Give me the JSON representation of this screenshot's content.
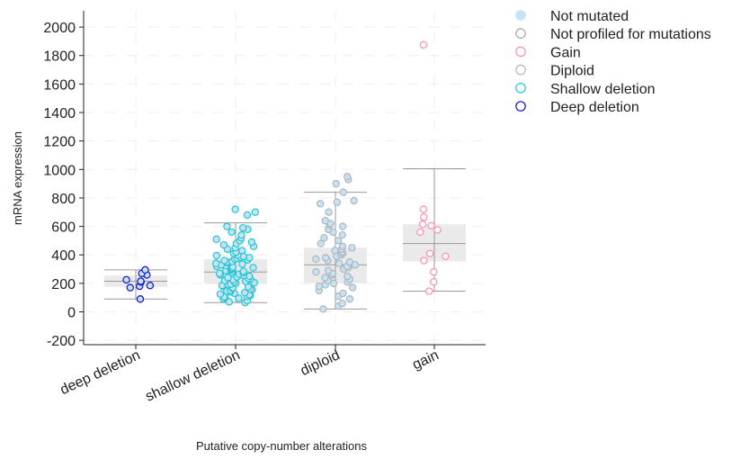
{
  "chart_data": {
    "type": "box-scatter",
    "xlabel": "Putative copy-number alterations",
    "ylabel": "mRNA expression",
    "ylim": [
      -200,
      2100
    ],
    "yticks": [
      -200,
      0,
      200,
      400,
      600,
      800,
      1000,
      1200,
      1400,
      1600,
      1800,
      2000
    ],
    "grid": true,
    "legend": {
      "placement": "top-right",
      "entries": [
        {
          "label": "Not mutated",
          "color": "#c6e2f5",
          "style": "filled"
        },
        {
          "label": "Not profiled for mutations",
          "color": "#a6a6a6",
          "style": "open"
        },
        {
          "label": "Gain",
          "color": "#ff8fa6",
          "style": "open"
        },
        {
          "label": "Diploid",
          "color": "#b0b7bd",
          "style": "open"
        },
        {
          "label": "Shallow deletion",
          "color": "#23c7d0",
          "style": "open"
        },
        {
          "label": "Deep deletion",
          "color": "#1010c8",
          "style": "open"
        }
      ]
    },
    "categories": [
      {
        "name": "deep deletion",
        "stroke": "#1010c8",
        "fill": "#c6e2f5",
        "box": {
          "whisker_low": 90,
          "q1": 175,
          "median": 215,
          "q3": 255,
          "whisker_high": 295
        },
        "points": [
          90,
          170,
          180,
          185,
          210,
          215,
          225,
          260,
          270,
          295
        ]
      },
      {
        "name": "shallow deletion",
        "stroke": "#23c7d0",
        "fill": "#c6e2f5",
        "box": {
          "whisker_low": 65,
          "q1": 195,
          "median": 280,
          "q3": 370,
          "whisker_high": 625
        },
        "points": [
          65,
          70,
          80,
          90,
          95,
          100,
          105,
          110,
          115,
          120,
          125,
          130,
          135,
          140,
          145,
          150,
          155,
          160,
          165,
          170,
          175,
          180,
          185,
          190,
          195,
          200,
          205,
          210,
          215,
          220,
          225,
          230,
          235,
          240,
          245,
          250,
          255,
          260,
          265,
          270,
          275,
          280,
          285,
          290,
          295,
          300,
          305,
          310,
          315,
          320,
          325,
          330,
          335,
          340,
          345,
          350,
          355,
          360,
          365,
          370,
          375,
          380,
          385,
          390,
          395,
          400,
          410,
          420,
          430,
          440,
          450,
          460,
          470,
          480,
          490,
          500,
          510,
          520,
          540,
          560,
          580,
          590,
          600,
          680,
          700,
          720
        ]
      },
      {
        "name": "diploid",
        "stroke": "#b0b7bd",
        "fill": "#c6e2f5",
        "box": {
          "whisker_low": 20,
          "q1": 200,
          "median": 330,
          "q3": 450,
          "whisker_high": 840
        },
        "points": [
          20,
          40,
          60,
          90,
          110,
          130,
          150,
          170,
          180,
          190,
          200,
          210,
          220,
          230,
          240,
          250,
          260,
          270,
          280,
          290,
          300,
          310,
          320,
          330,
          340,
          350,
          360,
          370,
          380,
          390,
          400,
          410,
          420,
          430,
          440,
          450,
          460,
          480,
          500,
          520,
          540,
          560,
          580,
          600,
          610,
          620,
          640,
          700,
          760,
          770,
          780,
          840,
          900,
          930,
          950
        ]
      },
      {
        "name": "gain",
        "stroke": "#ff8fa6",
        "fill": "#ffffff",
        "box": {
          "whisker_low": 145,
          "q1": 355,
          "median": 480,
          "q3": 615,
          "whisker_high": 1005
        },
        "points": [
          145,
          210,
          280,
          360,
          390,
          410,
          560,
          575,
          605,
          615,
          665,
          720,
          1875
        ]
      }
    ]
  }
}
